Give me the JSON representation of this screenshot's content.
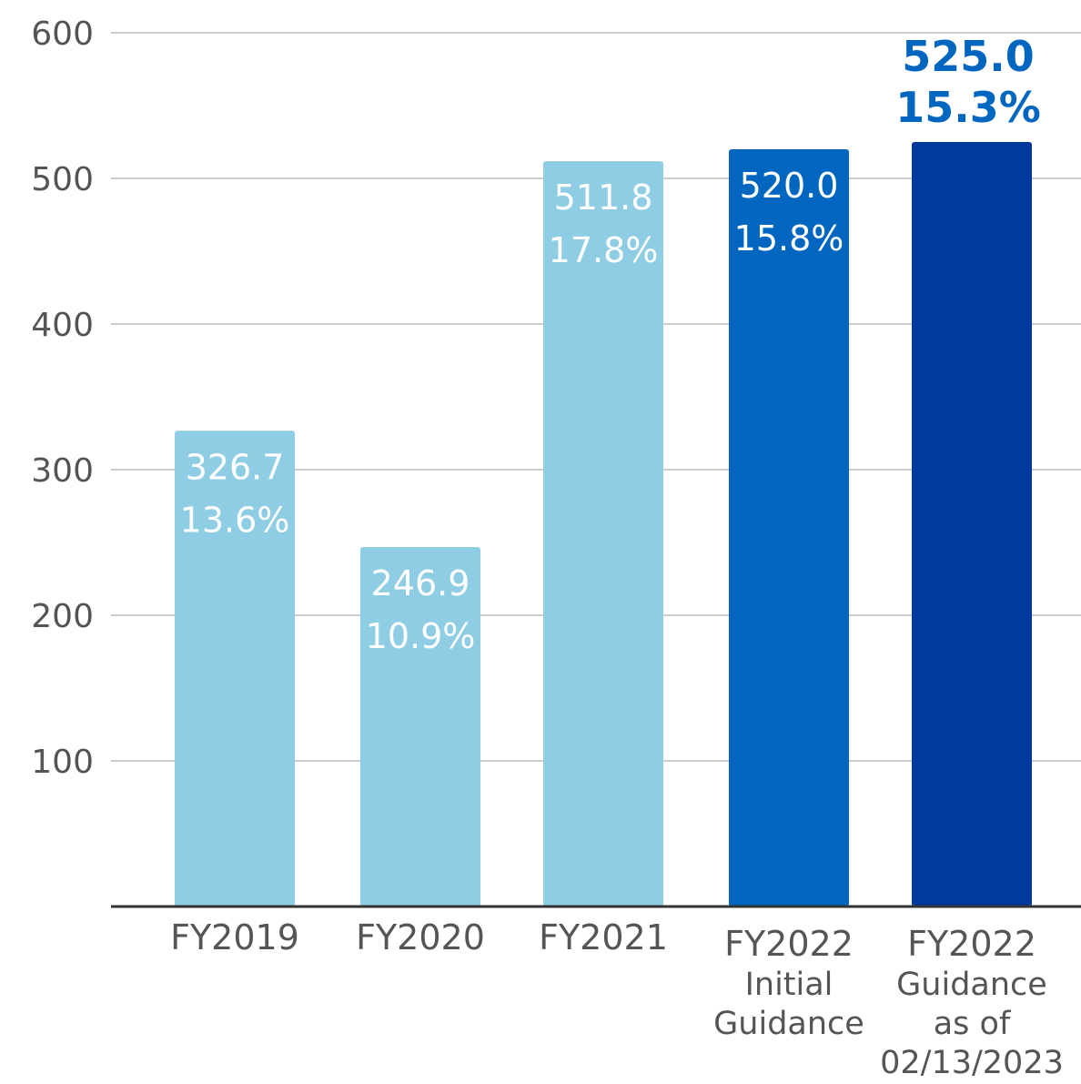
{
  "chart_data": {
    "type": "bar",
    "categories": [
      [
        "FY2019"
      ],
      [
        "FY2020"
      ],
      [
        "FY2021"
      ],
      [
        "FY2022",
        "Initial",
        "Guidance"
      ],
      [
        "FY2022",
        "Guidance",
        "as of",
        "02/13/2023"
      ]
    ],
    "values": [
      326.7,
      246.9,
      511.8,
      520.0,
      525.0
    ],
    "value_labels": [
      "326.7",
      "246.9",
      "511.8",
      "520.0",
      "525.0"
    ],
    "percent_labels": [
      "13.6%",
      "10.9%",
      "17.8%",
      "15.8%",
      "15.3%"
    ],
    "label_positions": [
      "inside",
      "inside",
      "inside",
      "inside",
      "above"
    ],
    "bar_colors": [
      "#8ecde3",
      "#8ecde3",
      "#8ecde3",
      "#0066bf",
      "#00399c"
    ],
    "above_label_color": "#0066bf",
    "ylim": [
      0,
      600
    ],
    "yticks": [
      100,
      200,
      300,
      400,
      500,
      600
    ],
    "grid": true,
    "title": "",
    "xlabel": "",
    "ylabel": ""
  }
}
